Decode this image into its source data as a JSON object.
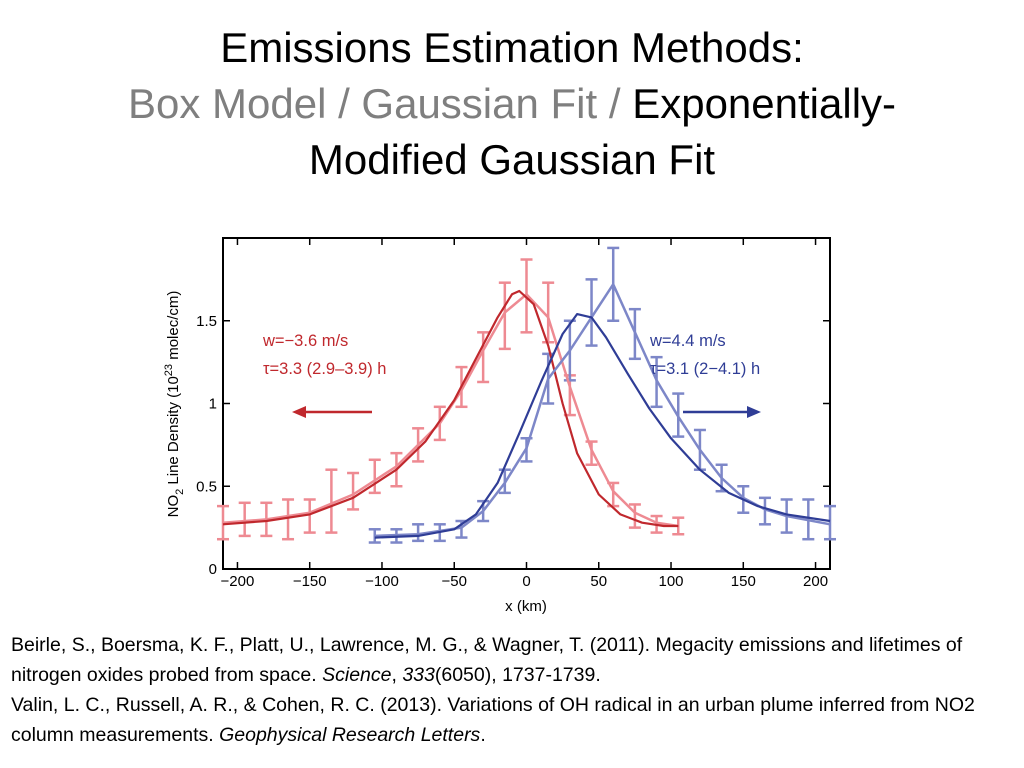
{
  "slide": {
    "title_line1": "Emissions Estimation Methods:",
    "title_box": "Box Model",
    "title_sep1": " / ",
    "title_gauss": "Gaussian Fit",
    "title_sep2": " / ",
    "title_emg1": "Exponentially-",
    "title_emg2": "Modified Gaussian Fit",
    "grey_color": "#7f7f7f"
  },
  "chart_data": {
    "type": "line",
    "xlabel": "x (km)",
    "ylabel": "NO2 Line Density (10^23 molec/cm)",
    "ylabel_parts": {
      "pre": "NO",
      "sub": "2",
      "mid": " Line Density (10",
      "sup": "23",
      "post": " molec/cm)"
    },
    "xlim": [
      -210,
      210
    ],
    "ylim": [
      0,
      2.0
    ],
    "xticks": [
      -200,
      -150,
      -100,
      -50,
      0,
      50,
      100,
      150,
      200
    ],
    "xtick_labels": [
      "−200",
      "−150",
      "−100",
      "−50",
      "0",
      "50",
      "100",
      "150",
      "200"
    ],
    "yticks": [
      0,
      0.5,
      1,
      1.5
    ],
    "ytick_labels": [
      "0",
      "0.5",
      "1",
      "1.5"
    ],
    "grid": false,
    "colors": {
      "red_dark": "#c0282d",
      "red_light": "#ee8a92",
      "blue_dark": "#2f3d96",
      "blue_light": "#7d87c8"
    },
    "series": [
      {
        "color_key": "red",
        "annotation_w": "w=−3.6 m/s",
        "annotation_tau": "τ=3.3 (2.9–3.9) h",
        "wind_direction": "left",
        "points": [
          [
            -210,
            0.28,
            0.1
          ],
          [
            -195,
            0.3,
            0.1
          ],
          [
            -180,
            0.3,
            0.1
          ],
          [
            -165,
            0.3,
            0.12
          ],
          [
            -150,
            0.32,
            0.1
          ],
          [
            -135,
            0.41,
            0.19
          ],
          [
            -120,
            0.47,
            0.11
          ],
          [
            -105,
            0.56,
            0.1
          ],
          [
            -90,
            0.6,
            0.1
          ],
          [
            -75,
            0.75,
            0.1
          ],
          [
            -60,
            0.88,
            0.1
          ],
          [
            -45,
            1.1,
            0.12
          ],
          [
            -30,
            1.28,
            0.15
          ],
          [
            -15,
            1.53,
            0.2
          ],
          [
            0,
            1.65,
            0.22
          ],
          [
            15,
            1.55,
            0.18
          ],
          [
            30,
            1.05,
            0.12
          ],
          [
            45,
            0.7,
            0.07
          ],
          [
            60,
            0.45,
            0.07
          ],
          [
            75,
            0.32,
            0.07
          ],
          [
            90,
            0.27,
            0.05
          ],
          [
            105,
            0.26,
            0.05
          ]
        ],
        "fit_light": [
          [
            -210,
            0.28
          ],
          [
            -180,
            0.3
          ],
          [
            -150,
            0.34
          ],
          [
            -120,
            0.45
          ],
          [
            -90,
            0.62
          ],
          [
            -60,
            0.88
          ],
          [
            -45,
            1.08
          ],
          [
            -30,
            1.32
          ],
          [
            -15,
            1.55
          ],
          [
            0,
            1.66
          ],
          [
            15,
            1.52
          ],
          [
            30,
            1.1
          ],
          [
            45,
            0.72
          ],
          [
            60,
            0.47
          ],
          [
            75,
            0.34
          ],
          [
            90,
            0.28
          ],
          [
            105,
            0.26
          ]
        ],
        "fit_dark": [
          [
            -210,
            0.27
          ],
          [
            -180,
            0.29
          ],
          [
            -150,
            0.33
          ],
          [
            -120,
            0.43
          ],
          [
            -90,
            0.6
          ],
          [
            -70,
            0.77
          ],
          [
            -50,
            1.02
          ],
          [
            -35,
            1.27
          ],
          [
            -20,
            1.52
          ],
          [
            -10,
            1.66
          ],
          [
            -5,
            1.68
          ],
          [
            5,
            1.6
          ],
          [
            15,
            1.35
          ],
          [
            25,
            1.0
          ],
          [
            35,
            0.7
          ],
          [
            50,
            0.45
          ],
          [
            65,
            0.33
          ],
          [
            80,
            0.28
          ],
          [
            95,
            0.26
          ],
          [
            105,
            0.26
          ]
        ]
      },
      {
        "color_key": "blue",
        "annotation_w": "w=4.4 m/s",
        "annotation_tau": "τ=3.1 (2−4.1) h",
        "wind_direction": "right",
        "points": [
          [
            -105,
            0.2,
            0.04
          ],
          [
            -90,
            0.2,
            0.04
          ],
          [
            -75,
            0.22,
            0.05
          ],
          [
            -60,
            0.22,
            0.05
          ],
          [
            -45,
            0.24,
            0.05
          ],
          [
            -30,
            0.35,
            0.06
          ],
          [
            -15,
            0.53,
            0.07
          ],
          [
            0,
            0.72,
            0.07
          ],
          [
            15,
            1.15,
            0.15
          ],
          [
            30,
            1.32,
            0.18
          ],
          [
            45,
            1.55,
            0.2
          ],
          [
            60,
            1.72,
            0.22
          ],
          [
            75,
            1.42,
            0.15
          ],
          [
            90,
            1.13,
            0.15
          ],
          [
            105,
            0.93,
            0.13
          ],
          [
            120,
            0.72,
            0.12
          ],
          [
            135,
            0.55,
            0.08
          ],
          [
            150,
            0.42,
            0.08
          ],
          [
            165,
            0.35,
            0.08
          ],
          [
            180,
            0.32,
            0.1
          ],
          [
            195,
            0.3,
            0.12
          ],
          [
            210,
            0.28,
            0.1
          ]
        ],
        "fit_light": [
          [
            -105,
            0.2
          ],
          [
            -75,
            0.21
          ],
          [
            -45,
            0.25
          ],
          [
            -30,
            0.35
          ],
          [
            -15,
            0.52
          ],
          [
            0,
            0.73
          ],
          [
            15,
            1.15
          ],
          [
            30,
            1.32
          ],
          [
            45,
            1.52
          ],
          [
            60,
            1.72
          ],
          [
            75,
            1.43
          ],
          [
            90,
            1.14
          ],
          [
            105,
            0.92
          ],
          [
            120,
            0.72
          ],
          [
            135,
            0.55
          ],
          [
            150,
            0.43
          ],
          [
            165,
            0.36
          ],
          [
            180,
            0.32
          ],
          [
            210,
            0.27
          ]
        ],
        "fit_dark": [
          [
            -105,
            0.19
          ],
          [
            -75,
            0.2
          ],
          [
            -50,
            0.24
          ],
          [
            -35,
            0.33
          ],
          [
            -20,
            0.52
          ],
          [
            -5,
            0.82
          ],
          [
            10,
            1.13
          ],
          [
            25,
            1.42
          ],
          [
            35,
            1.54
          ],
          [
            45,
            1.52
          ],
          [
            55,
            1.4
          ],
          [
            70,
            1.18
          ],
          [
            85,
            0.97
          ],
          [
            100,
            0.79
          ],
          [
            120,
            0.6
          ],
          [
            140,
            0.46
          ],
          [
            160,
            0.38
          ],
          [
            180,
            0.33
          ],
          [
            210,
            0.29
          ]
        ]
      }
    ]
  },
  "refs": {
    "ref1_text": "Beirle, S., Boersma, K. F., Platt, U., Lawrence, M. G., & Wagner, T. (2011). Megacity emissions and lifetimes of nitrogen oxides probed from space. ",
    "ref1_journal": "Science",
    "ref1_sep": ", ",
    "ref1_volume": "333",
    "ref1_tail": "(6050), 1737-1739.",
    "ref2_text": "Valin, L. C., Russell, A. R., & Cohen, R. C. (2013). Variations of OH radical in an urban plume inferred from NO2 column measurements. ",
    "ref2_journal": "Geophysical Research Letters",
    "ref2_tail": "."
  }
}
